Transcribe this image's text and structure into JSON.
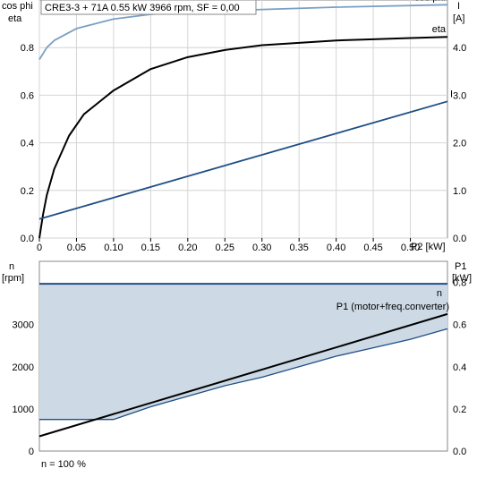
{
  "chart_data": [
    {
      "type": "line",
      "title": "CRE3-3 + 71A   0.55 kW   3966 rpm, SF = 0,00",
      "xlabel": "P2 [kW]",
      "ylabel_left": [
        "cos phi",
        "eta"
      ],
      "ylabel_right": [
        "I",
        "[A]"
      ],
      "xlim": [
        0,
        0.55
      ],
      "ylim_left": [
        0,
        1.0
      ],
      "ylim_right": [
        0,
        5.0
      ],
      "x_ticks": [
        "0",
        "0.05",
        "0.10",
        "0.15",
        "0.20",
        "0.25",
        "0.30",
        "0.35",
        "0.40",
        "0.45",
        "0.50"
      ],
      "y_left_ticks": [
        "0.0",
        "0.2",
        "0.4",
        "0.6",
        "0.8"
      ],
      "y_right_ticks": [
        "0.0",
        "1.0",
        "2.0",
        "3.0",
        "4.0"
      ],
      "grid": true,
      "colors": {
        "cos_phi": "#7a9fc4",
        "eta": "#000000",
        "I": "#1f4e85",
        "grid": "#d4d4d4"
      },
      "series": [
        {
          "name": "cos phi",
          "axis": "left",
          "x": [
            0,
            0.01,
            0.02,
            0.05,
            0.1,
            0.15,
            0.2,
            0.3,
            0.4,
            0.55
          ],
          "y": [
            0.75,
            0.8,
            0.83,
            0.88,
            0.92,
            0.94,
            0.95,
            0.96,
            0.97,
            0.98
          ]
        },
        {
          "name": "eta",
          "axis": "left",
          "x": [
            0,
            0.005,
            0.01,
            0.02,
            0.04,
            0.06,
            0.08,
            0.1,
            0.15,
            0.2,
            0.25,
            0.3,
            0.35,
            0.4,
            0.45,
            0.5,
            0.55
          ],
          "y": [
            0.0,
            0.1,
            0.18,
            0.29,
            0.43,
            0.52,
            0.57,
            0.62,
            0.71,
            0.76,
            0.79,
            0.81,
            0.82,
            0.83,
            0.835,
            0.84,
            0.845
          ]
        },
        {
          "name": "I",
          "axis": "right",
          "x": [
            0,
            0.55
          ],
          "y": [
            0.4,
            2.87
          ]
        }
      ]
    },
    {
      "type": "area",
      "xlabel": "",
      "ylabel_left": [
        "n",
        "[rpm]"
      ],
      "ylabel_right": [
        "P1",
        "[kW]"
      ],
      "xlim": [
        0,
        0.55
      ],
      "ylim_left": [
        0,
        4500
      ],
      "ylim_right": [
        0,
        0.9
      ],
      "y_left_ticks": [
        "0",
        "1000",
        "2000",
        "3000"
      ],
      "y_right_ticks": [
        "0.0",
        "0.2",
        "0.4",
        "0.6",
        "0.8"
      ],
      "footnote": "n = 100 %",
      "colors": {
        "n": "#1f4e85",
        "P1": "#000000",
        "fill": "#cddae6",
        "lower": "#1f4e85"
      },
      "series": [
        {
          "name": "n",
          "axis": "left",
          "x": [
            0,
            0.55
          ],
          "y": [
            3966,
            3966
          ]
        },
        {
          "name": "P1 (motor+freq.converter)",
          "axis": "right",
          "x": [
            0,
            0.55
          ],
          "y": [
            0.07,
            0.65
          ]
        },
        {
          "axis": "right",
          "x": [
            0,
            0.1,
            0.15,
            0.2,
            0.25,
            0.3,
            0.35,
            0.4,
            0.45,
            0.5,
            0.55
          ],
          "y": [
            0.15,
            0.15,
            0.21,
            0.26,
            0.31,
            0.35,
            0.4,
            0.45,
            0.49,
            0.53,
            0.58
          ]
        }
      ]
    }
  ]
}
